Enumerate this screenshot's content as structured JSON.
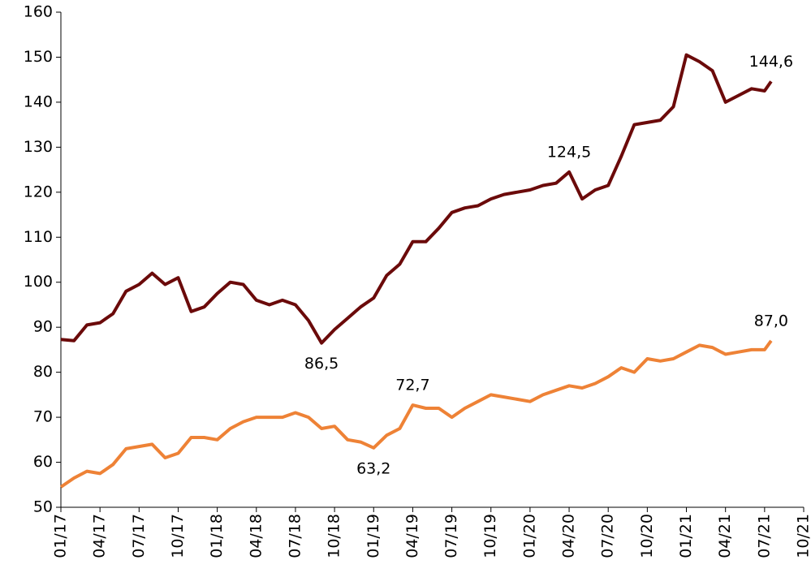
{
  "chart_data": {
    "type": "line",
    "x": [
      0,
      1,
      2,
      3,
      4,
      5,
      6,
      7,
      8,
      9,
      10,
      11,
      12,
      13,
      14,
      15,
      16,
      17,
      18,
      19,
      20,
      21,
      22,
      23,
      24,
      25,
      26,
      27,
      28,
      29,
      30,
      31,
      32,
      33,
      34,
      35,
      36,
      37,
      38,
      39,
      40,
      41,
      42,
      43,
      44,
      45,
      46,
      47,
      48,
      49,
      50,
      51,
      52,
      53,
      54,
      54.5
    ],
    "series": [
      {
        "color": "#6b0a0a",
        "values": [
          87.3,
          87,
          90.5,
          91,
          93,
          98,
          99.5,
          102,
          99.5,
          101,
          93.5,
          94.5,
          97.5,
          100,
          99.5,
          96,
          95,
          96,
          95,
          91.5,
          86.5,
          89.5,
          92,
          94.5,
          96.5,
          101.5,
          104,
          109,
          109,
          112,
          115.5,
          116.5,
          117,
          118.5,
          119.5,
          120,
          120.5,
          121.5,
          122,
          124.5,
          118.5,
          120.5,
          121.5,
          128,
          135,
          135.5,
          136,
          139,
          150.5,
          149,
          147,
          140,
          141.5,
          143,
          142.5,
          144.6
        ],
        "value_labels": [
          null,
          null,
          null,
          null,
          null,
          null,
          null,
          null,
          null,
          null,
          null,
          null,
          null,
          null,
          null,
          null,
          null,
          null,
          null,
          null,
          "86,5",
          null,
          null,
          null,
          null,
          null,
          null,
          null,
          null,
          null,
          null,
          null,
          null,
          null,
          null,
          null,
          null,
          null,
          null,
          "124,5",
          null,
          null,
          null,
          null,
          null,
          null,
          null,
          null,
          null,
          null,
          null,
          null,
          null,
          null,
          null,
          "144,6"
        ]
      },
      {
        "color": "#ee8236",
        "values": [
          54.5,
          56.5,
          58,
          57.5,
          59.5,
          63,
          63.5,
          64,
          61,
          62,
          65.5,
          65.5,
          65,
          67.5,
          69,
          70,
          70,
          70,
          71,
          70,
          67.5,
          68,
          65,
          64.5,
          63.2,
          66,
          67.5,
          72.7,
          72,
          72,
          70,
          72,
          73.5,
          75,
          74.5,
          74,
          73.5,
          75,
          76,
          77,
          76.5,
          77.5,
          79,
          81,
          80,
          83,
          82.5,
          83,
          84.5,
          86,
          85.5,
          84,
          84.5,
          85,
          85,
          87.0
        ],
        "value_labels": [
          null,
          null,
          null,
          null,
          null,
          null,
          null,
          null,
          null,
          null,
          null,
          null,
          null,
          null,
          null,
          null,
          null,
          null,
          null,
          null,
          null,
          null,
          null,
          null,
          "63,2",
          null,
          null,
          "72,7",
          null,
          null,
          null,
          null,
          null,
          null,
          null,
          null,
          null,
          null,
          null,
          null,
          null,
          null,
          null,
          null,
          null,
          null,
          null,
          null,
          null,
          null,
          null,
          null,
          null,
          null,
          null,
          "87,0"
        ]
      }
    ],
    "xlim": [
      0,
      57
    ],
    "xticks": [
      {
        "value": 0,
        "label": "01/17"
      },
      {
        "value": 3,
        "label": "04/17"
      },
      {
        "value": 6,
        "label": "07/17"
      },
      {
        "value": 9,
        "label": "10/17"
      },
      {
        "value": 12,
        "label": "01/18"
      },
      {
        "value": 15,
        "label": "04/18"
      },
      {
        "value": 18,
        "label": "07/18"
      },
      {
        "value": 21,
        "label": "10/18"
      },
      {
        "value": 24,
        "label": "01/19"
      },
      {
        "value": 27,
        "label": "04/19"
      },
      {
        "value": 30,
        "label": "07/19"
      },
      {
        "value": 33,
        "label": "10/19"
      },
      {
        "value": 36,
        "label": "01/20"
      },
      {
        "value": 39,
        "label": "04/20"
      },
      {
        "value": 42,
        "label": "07/20"
      },
      {
        "value": 45,
        "label": "10/20"
      },
      {
        "value": 48,
        "label": "01/21"
      },
      {
        "value": 51,
        "label": "04/21"
      },
      {
        "value": 54,
        "label": "07/21"
      },
      {
        "value": 57,
        "label": "10/21"
      }
    ],
    "ylim": [
      50,
      160
    ],
    "yticks": [
      50,
      60,
      70,
      80,
      90,
      100,
      110,
      120,
      130,
      140,
      150,
      160
    ],
    "grid": false
  }
}
